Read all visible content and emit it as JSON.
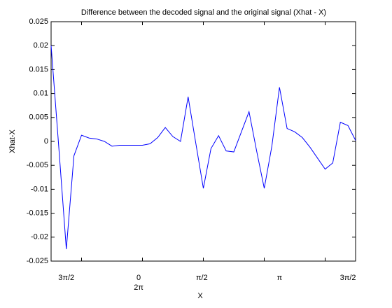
{
  "chart_data": {
    "type": "line",
    "title": "Difference between the decoded signal and the original signal (Xhat - X)",
    "x_label": "X",
    "y_label": "Xhat-X",
    "x": [
      0,
      1,
      2,
      3,
      4,
      5,
      6,
      7,
      8,
      9,
      10,
      11,
      12,
      13,
      14,
      15,
      16,
      17,
      18,
      19,
      20,
      21,
      22,
      23,
      24,
      25,
      26,
      27,
      28,
      29,
      30,
      31,
      32,
      33,
      34,
      35,
      36,
      37,
      38,
      39,
      40
    ],
    "series": [
      {
        "name": "Xhat-X",
        "color": "#0000ff",
        "values": [
          0.02,
          -0.001,
          -0.0225,
          -0.003,
          0.0013,
          0.0007,
          0.0005,
          0.0,
          -0.001,
          -0.0008,
          -0.0008,
          -0.0008,
          -0.0008,
          -0.0005,
          0.0008,
          0.0029,
          0.001,
          0.0,
          0.0093,
          -0.0003,
          -0.0098,
          -0.0015,
          0.0012,
          -0.002,
          -0.0022,
          0.002,
          0.0062,
          -0.002,
          -0.0098,
          -0.001,
          0.0113,
          0.0027,
          0.002,
          0.0008,
          -0.0012,
          -0.0035,
          -0.0058,
          -0.0045,
          0.004,
          0.0033,
          0.0002
        ]
      }
    ],
    "xlim": [
      0,
      40
    ],
    "xticks": [
      4,
      12,
      20,
      28,
      36
    ],
    "x_annotations": [
      {
        "text": "3π/2",
        "x": 2
      },
      {
        "text": "0",
        "x": 11.5
      },
      {
        "text": "2π",
        "x": 11.5
      },
      {
        "text": "π/2",
        "x": 19.8
      },
      {
        "text": "π",
        "x": 30
      },
      {
        "text": "3π/2",
        "x": 39
      }
    ],
    "ylim": [
      -0.025,
      0.025
    ],
    "yticks": [
      -0.025,
      -0.02,
      -0.015,
      -0.01,
      -0.005,
      0,
      0.005,
      0.01,
      0.015,
      0.02,
      0.025
    ],
    "grid": false
  }
}
